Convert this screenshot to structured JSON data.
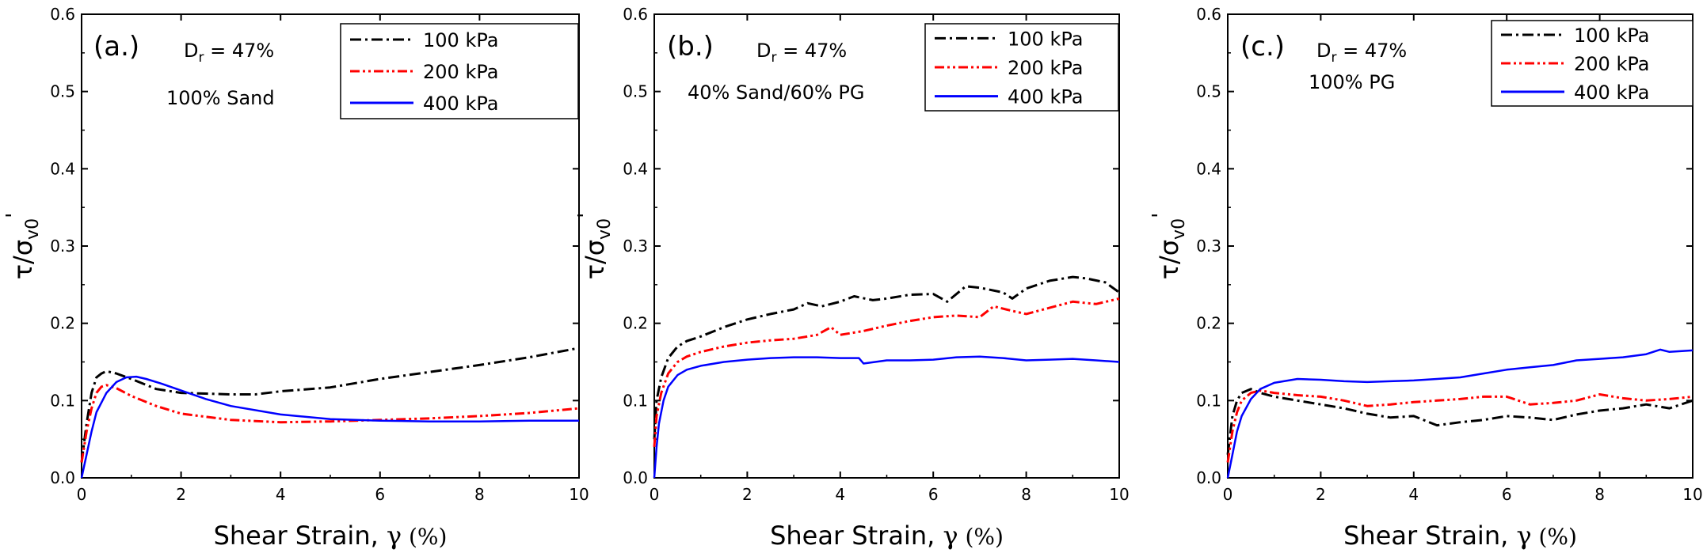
{
  "chart_data": [
    {
      "type": "line",
      "panel_label": "(a.)",
      "annotation_dr_main": "D",
      "annotation_dr_sub": "r",
      "annotation_dr_value": " = 47%",
      "annotation_material": "100% Sand",
      "xlabel": "Shear Strain, ",
      "xlabel_symbol": "γ",
      "xlabel_unit": " (%)",
      "ylabel_tau": "τ/σ",
      "ylabel_sub": "v0",
      "ylabel_prime": "'",
      "xlim": [
        0,
        10
      ],
      "ylim": [
        0,
        0.6
      ],
      "xticks": [
        "0",
        "2",
        "4",
        "6",
        "8",
        "10"
      ],
      "yticks": [
        "0.0",
        "0.1",
        "0.2",
        "0.3",
        "0.4",
        "0.5",
        "0.6"
      ],
      "legend_position": "top-right",
      "series": [
        {
          "name": "100 kPa",
          "color": "#000000",
          "dash": "dashdot",
          "x": [
            0,
            0.1,
            0.2,
            0.3,
            0.4,
            0.5,
            0.7,
            1.0,
            1.5,
            2,
            3,
            3.5,
            4,
            5,
            6,
            7,
            8,
            9,
            10
          ],
          "y": [
            0.02,
            0.07,
            0.11,
            0.13,
            0.135,
            0.138,
            0.135,
            0.128,
            0.115,
            0.11,
            0.108,
            0.108,
            0.112,
            0.117,
            0.128,
            0.137,
            0.146,
            0.156,
            0.168
          ]
        },
        {
          "name": "200 kPa",
          "color": "#ff0000",
          "dash": "dashdotdot",
          "x": [
            0,
            0.1,
            0.2,
            0.3,
            0.4,
            0.5,
            0.7,
            1.0,
            1.5,
            2,
            3,
            4,
            5,
            6,
            7,
            8,
            9,
            10
          ],
          "y": [
            0.02,
            0.06,
            0.09,
            0.11,
            0.118,
            0.12,
            0.116,
            0.106,
            0.093,
            0.083,
            0.075,
            0.072,
            0.073,
            0.075,
            0.077,
            0.08,
            0.084,
            0.09
          ]
        },
        {
          "name": "400 kPa",
          "color": "#0000ff",
          "dash": "solid",
          "x": [
            0,
            0.1,
            0.2,
            0.3,
            0.5,
            0.7,
            0.9,
            1.1,
            1.3,
            1.6,
            2,
            2.5,
            3,
            4,
            5,
            6,
            7,
            8,
            9,
            10
          ],
          "y": [
            0,
            0.03,
            0.06,
            0.085,
            0.11,
            0.124,
            0.13,
            0.131,
            0.128,
            0.122,
            0.113,
            0.102,
            0.093,
            0.082,
            0.076,
            0.074,
            0.073,
            0.073,
            0.074,
            0.074
          ]
        }
      ]
    },
    {
      "type": "line",
      "panel_label": "(b.)",
      "annotation_dr_main": "D",
      "annotation_dr_sub": "r",
      "annotation_dr_value": " = 47%",
      "annotation_material": "40% Sand/60% PG",
      "xlabel": "Shear Strain, ",
      "xlabel_symbol": "γ",
      "xlabel_unit": " (%)",
      "ylabel_tau": "τ/σ",
      "ylabel_sub": "v0",
      "ylabel_prime": "'",
      "xlim": [
        0,
        10
      ],
      "ylim": [
        0,
        0.6
      ],
      "xticks": [
        "0",
        "2",
        "4",
        "6",
        "8",
        "10"
      ],
      "yticks": [
        "0.0",
        "0.1",
        "0.2",
        "0.3",
        "0.4",
        "0.5",
        "0.6"
      ],
      "legend_position": "top-right",
      "series": [
        {
          "name": "100 kPa",
          "color": "#000000",
          "dash": "dashdot",
          "x": [
            0,
            0.05,
            0.15,
            0.3,
            0.5,
            0.7,
            1.0,
            1.5,
            2,
            2.5,
            3,
            3.3,
            3.6,
            4,
            4.3,
            4.7,
            5,
            5.5,
            6,
            6.3,
            6.7,
            7,
            7.5,
            7.7,
            8,
            8.5,
            9,
            9.3,
            9.7,
            10
          ],
          "y": [
            0.05,
            0.1,
            0.13,
            0.155,
            0.17,
            0.177,
            0.183,
            0.195,
            0.205,
            0.212,
            0.218,
            0.226,
            0.222,
            0.228,
            0.235,
            0.23,
            0.232,
            0.237,
            0.238,
            0.228,
            0.248,
            0.246,
            0.24,
            0.232,
            0.245,
            0.255,
            0.26,
            0.258,
            0.253,
            0.24
          ]
        },
        {
          "name": "200 kPa",
          "color": "#ff0000",
          "dash": "dashdotdot",
          "x": [
            0,
            0.05,
            0.15,
            0.3,
            0.5,
            0.7,
            1.0,
            1.5,
            2,
            2.5,
            3,
            3.5,
            3.8,
            4,
            4.5,
            5,
            5.5,
            6,
            6.5,
            7,
            7.3,
            7.7,
            8,
            8.5,
            9,
            9.5,
            10
          ],
          "y": [
            0.04,
            0.08,
            0.11,
            0.135,
            0.15,
            0.157,
            0.163,
            0.17,
            0.175,
            0.178,
            0.18,
            0.185,
            0.195,
            0.185,
            0.19,
            0.197,
            0.203,
            0.208,
            0.21,
            0.208,
            0.222,
            0.216,
            0.212,
            0.22,
            0.228,
            0.225,
            0.232
          ]
        },
        {
          "name": "400 kPa",
          "color": "#0000ff",
          "dash": "solid",
          "x": [
            0,
            0.05,
            0.1,
            0.2,
            0.3,
            0.5,
            0.7,
            1.0,
            1.5,
            2,
            2.5,
            3,
            3.5,
            4,
            4.4,
            4.5,
            5,
            5.5,
            6,
            6.5,
            7,
            7.5,
            8,
            8.5,
            9,
            9.5,
            10
          ],
          "y": [
            0,
            0.04,
            0.07,
            0.1,
            0.118,
            0.133,
            0.14,
            0.145,
            0.15,
            0.153,
            0.155,
            0.156,
            0.156,
            0.155,
            0.155,
            0.148,
            0.152,
            0.152,
            0.153,
            0.156,
            0.157,
            0.155,
            0.152,
            0.153,
            0.154,
            0.152,
            0.15
          ]
        }
      ]
    },
    {
      "type": "line",
      "panel_label": "(c.)",
      "annotation_dr_main": "D",
      "annotation_dr_sub": "r",
      "annotation_dr_value": " = 47%",
      "annotation_material": "100% PG",
      "xlabel": "Shear Strain, ",
      "xlabel_symbol": "γ",
      "xlabel_unit": " (%)",
      "ylabel_tau": "τ/σ",
      "ylabel_sub": "v0",
      "ylabel_prime": "'",
      "xlim": [
        0,
        10
      ],
      "ylim": [
        0,
        0.6
      ],
      "xticks": [
        "0",
        "2",
        "4",
        "6",
        "8",
        "10"
      ],
      "yticks": [
        "0.0",
        "0.1",
        "0.2",
        "0.3",
        "0.4",
        "0.5",
        "0.6"
      ],
      "legend_position": "top-right",
      "series": [
        {
          "name": "100 kPa",
          "color": "#000000",
          "dash": "dashdot",
          "x": [
            0,
            0.1,
            0.2,
            0.3,
            0.5,
            0.7,
            1.0,
            1.5,
            2,
            2.5,
            3,
            3.5,
            4,
            4.5,
            5,
            5.5,
            6,
            6.5,
            7,
            7.5,
            8,
            8.5,
            9,
            9.5,
            10
          ],
          "y": [
            0.03,
            0.08,
            0.1,
            0.11,
            0.115,
            0.11,
            0.105,
            0.1,
            0.095,
            0.09,
            0.083,
            0.078,
            0.08,
            0.068,
            0.072,
            0.075,
            0.08,
            0.078,
            0.075,
            0.082,
            0.087,
            0.09,
            0.095,
            0.09,
            0.1
          ]
        },
        {
          "name": "200 kPa",
          "color": "#ff0000",
          "dash": "dashdotdot",
          "x": [
            0,
            0.1,
            0.2,
            0.3,
            0.5,
            0.7,
            1.0,
            1.5,
            2,
            2.5,
            3,
            3.5,
            4,
            4.5,
            5,
            5.5,
            6,
            6.5,
            7,
            7.5,
            8,
            8.5,
            9,
            9.5,
            10
          ],
          "y": [
            0.02,
            0.06,
            0.085,
            0.1,
            0.11,
            0.113,
            0.11,
            0.107,
            0.105,
            0.1,
            0.093,
            0.095,
            0.098,
            0.1,
            0.102,
            0.105,
            0.105,
            0.095,
            0.097,
            0.1,
            0.108,
            0.103,
            0.1,
            0.102,
            0.105
          ]
        },
        {
          "name": "400 kPa",
          "color": "#0000ff",
          "dash": "solid",
          "x": [
            0,
            0.1,
            0.2,
            0.3,
            0.5,
            0.7,
            1.0,
            1.5,
            2,
            2.5,
            3,
            3.5,
            4,
            4.5,
            5,
            5.5,
            6,
            6.5,
            7,
            7.5,
            8,
            8.5,
            9,
            9.3,
            9.5,
            10
          ],
          "y": [
            0,
            0.03,
            0.06,
            0.08,
            0.102,
            0.115,
            0.123,
            0.128,
            0.127,
            0.125,
            0.124,
            0.125,
            0.126,
            0.128,
            0.13,
            0.135,
            0.14,
            0.143,
            0.146,
            0.152,
            0.154,
            0.156,
            0.16,
            0.166,
            0.163,
            0.165
          ]
        }
      ]
    }
  ]
}
